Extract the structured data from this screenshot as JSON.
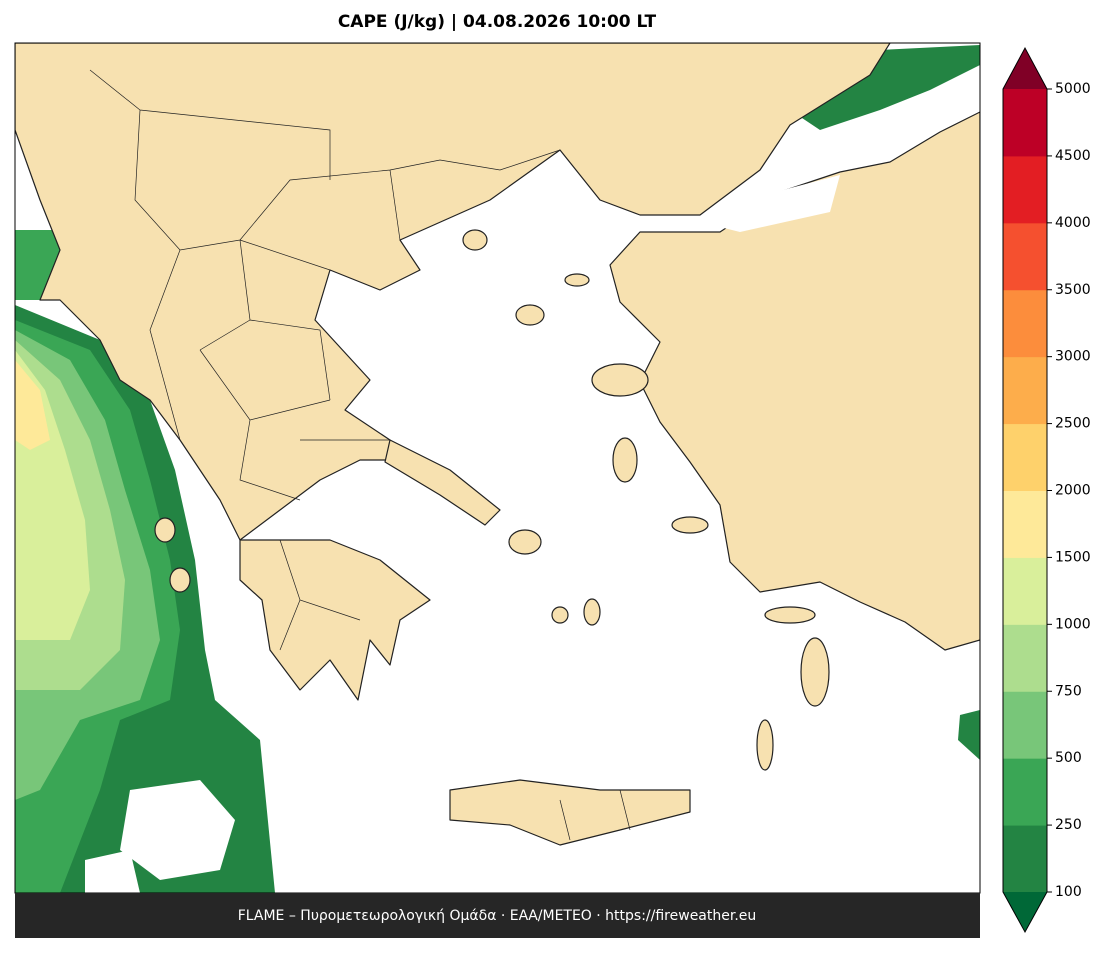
{
  "title": "CAPE (J/kg)  |  04.08.2026 10:00 LT",
  "footer": "FLAME – Πυρομετεωρολογική Ομάδα · ΕΑΑ/METEO · https://fireweather.eu",
  "colorbar": {
    "ticks": [
      100,
      250,
      500,
      750,
      1000,
      1500,
      2000,
      2500,
      3000,
      3500,
      4000,
      4500,
      5000
    ],
    "colors": [
      "#238443",
      "#3aa655",
      "#78c679",
      "#addd8e",
      "#d9ef9b",
      "#fee999",
      "#fed16b",
      "#fdad4b",
      "#fc8d3c",
      "#f5502f",
      "#e31e23",
      "#bd0026"
    ],
    "under_color": "#006837",
    "over_color": "#800026"
  }
}
